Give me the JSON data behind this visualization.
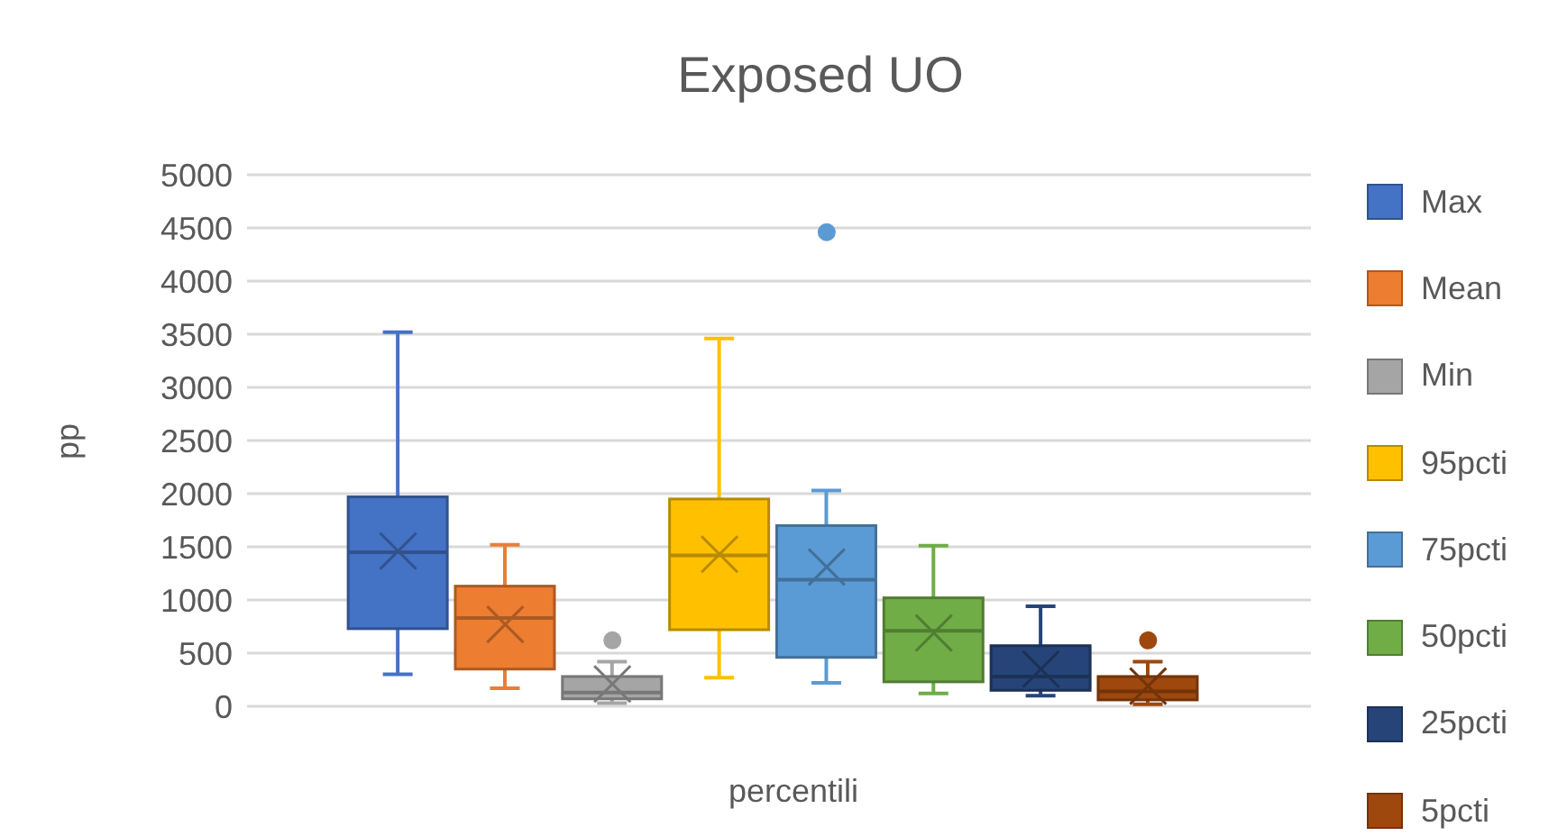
{
  "chart_data": {
    "type": "box",
    "title": "Exposed UO",
    "ylabel": "pp",
    "categories": [
      "percentili"
    ],
    "series": [
      {
        "name": "Max",
        "color": "#4472c4",
        "boxes": [
          {
            "low": 300,
            "q1": 730,
            "median": 1450,
            "q3": 1970,
            "high": 3520,
            "mean": 1460
          }
        ]
      },
      {
        "name": "Mean",
        "color": "#ed7d31",
        "boxes": [
          {
            "low": 170,
            "q1": 350,
            "median": 830,
            "q3": 1130,
            "high": 1520,
            "mean": 770
          }
        ]
      },
      {
        "name": "Min",
        "color": "#a5a5a5",
        "boxes": [
          {
            "low": 30,
            "q1": 70,
            "median": 130,
            "q3": 280,
            "high": 420,
            "mean": 210,
            "outliers": [
              620
            ]
          }
        ]
      },
      {
        "name": "95pcti",
        "color": "#ffc000",
        "boxes": [
          {
            "low": 270,
            "q1": 720,
            "median": 1420,
            "q3": 1950,
            "high": 3460,
            "mean": 1430
          }
        ]
      },
      {
        "name": "75pcti",
        "color": "#5b9bd5",
        "boxes": [
          {
            "low": 220,
            "q1": 460,
            "median": 1190,
            "q3": 1700,
            "high": 2030,
            "mean": 1310,
            "outliers": [
              4460
            ]
          }
        ]
      },
      {
        "name": "50pcti",
        "color": "#70ad47",
        "boxes": [
          {
            "low": 120,
            "q1": 230,
            "median": 710,
            "q3": 1020,
            "high": 1510,
            "mean": 690
          }
        ]
      },
      {
        "name": "25pcti",
        "color": "#264478",
        "boxes": [
          {
            "low": 100,
            "q1": 150,
            "median": 280,
            "q3": 570,
            "high": 940,
            "mean": 350
          }
        ]
      },
      {
        "name": "5pcti",
        "color": "#9e480e",
        "boxes": [
          {
            "low": 20,
            "q1": 60,
            "median": 140,
            "q3": 280,
            "high": 420,
            "mean": 190,
            "outliers": [
              620
            ]
          }
        ]
      }
    ],
    "ylim": [
      0,
      5000
    ],
    "yticks": [
      0,
      500,
      1000,
      1500,
      2000,
      2500,
      3000,
      3500,
      4000,
      4500,
      5000
    ],
    "grid": "y",
    "legend": "right"
  }
}
